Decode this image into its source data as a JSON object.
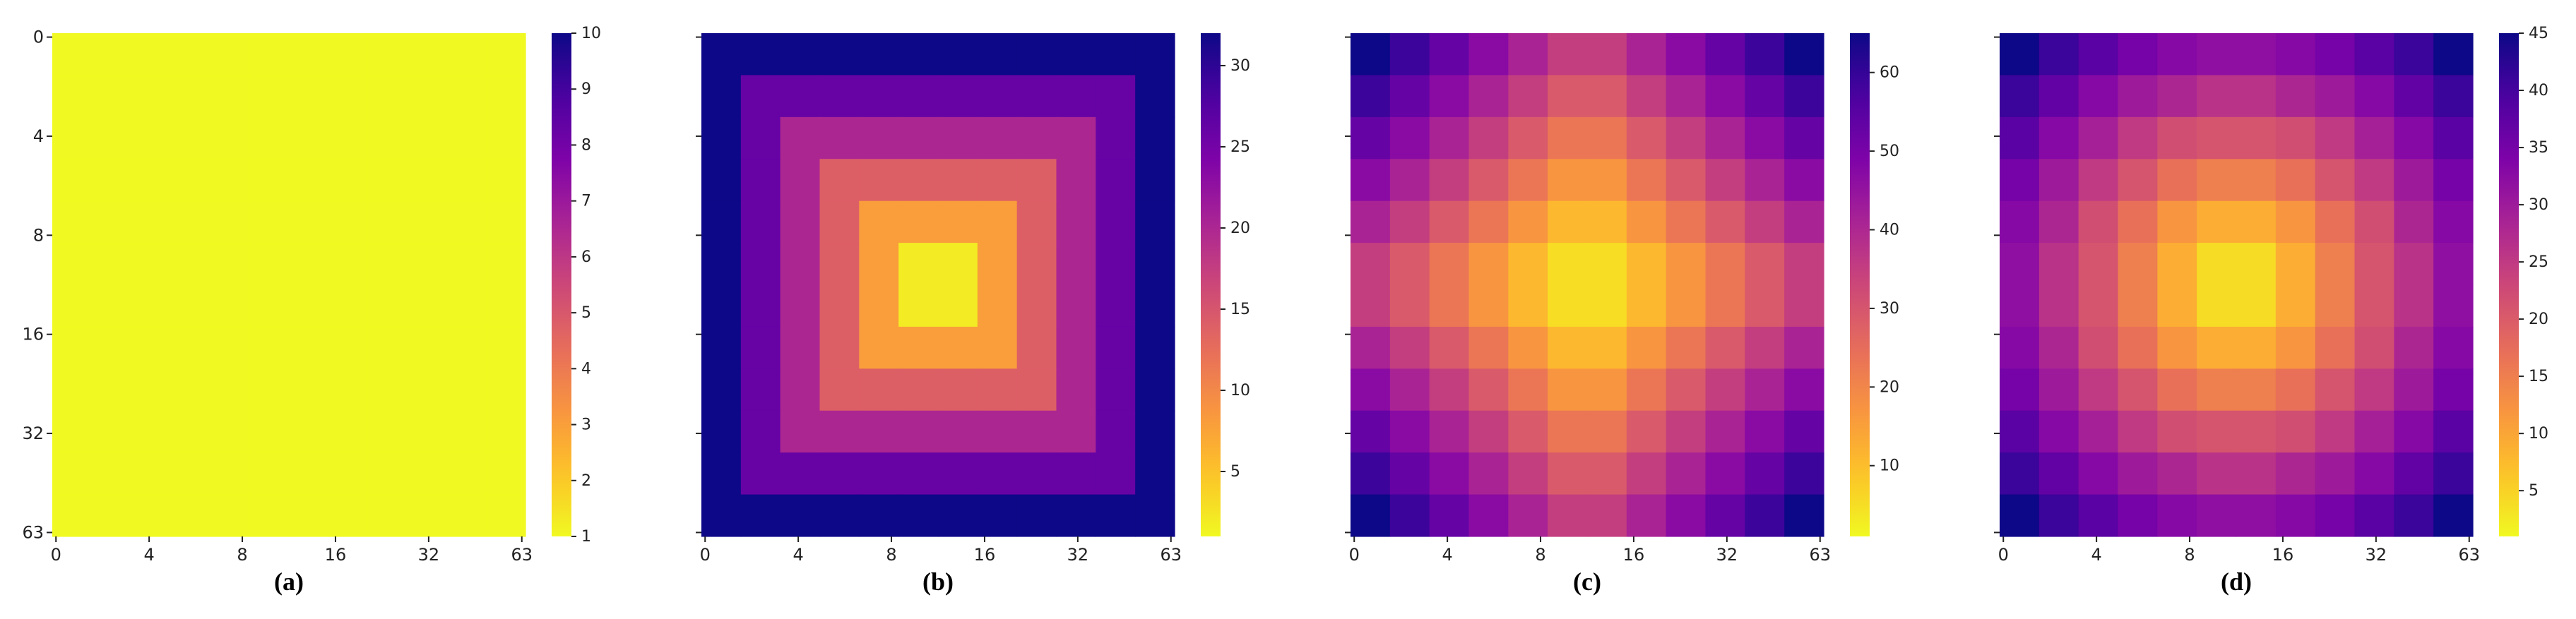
{
  "chart_data": [
    {
      "type": "heatmap",
      "caption": "(a)",
      "colormap": "plasma_r",
      "x_tick_labels": [
        "0",
        "4",
        "8",
        "16",
        "32",
        "63"
      ],
      "y_tick_labels": [
        "0",
        "4",
        "8",
        "16",
        "32",
        "63"
      ],
      "clim": [
        1,
        10
      ],
      "cticks": [
        1,
        2,
        3,
        4,
        5,
        6,
        7,
        8,
        9,
        10
      ],
      "values": [
        [
          1,
          1,
          1,
          1,
          1,
          1,
          1,
          1,
          1,
          1,
          1,
          1
        ],
        [
          1,
          1,
          1,
          1,
          1,
          1,
          1,
          1,
          1,
          1,
          1,
          1
        ],
        [
          1,
          1,
          1,
          1,
          1,
          1,
          1,
          1,
          1,
          1,
          1,
          1
        ],
        [
          1,
          1,
          1,
          1,
          1,
          1,
          1,
          1,
          1,
          1,
          1,
          1
        ],
        [
          1,
          1,
          1,
          1,
          1,
          1,
          1,
          1,
          1,
          1,
          1,
          1
        ],
        [
          1,
          1,
          1,
          1,
          1,
          1,
          1,
          1,
          1,
          1,
          1,
          1
        ],
        [
          1,
          1,
          1,
          1,
          1,
          1,
          1,
          1,
          1,
          1,
          1,
          1
        ],
        [
          1,
          1,
          1,
          1,
          1,
          1,
          1,
          1,
          1,
          1,
          1,
          1
        ],
        [
          1,
          1,
          1,
          1,
          1,
          1,
          1,
          1,
          1,
          1,
          1,
          1
        ],
        [
          1,
          1,
          1,
          1,
          1,
          1,
          1,
          1,
          1,
          1,
          1,
          1
        ],
        [
          1,
          1,
          1,
          1,
          1,
          1,
          1,
          1,
          1,
          1,
          1,
          1
        ],
        [
          1,
          1,
          1,
          1,
          1,
          1,
          1,
          1,
          1,
          1,
          1,
          1
        ]
      ]
    },
    {
      "type": "heatmap",
      "caption": "(b)",
      "colormap": "plasma_r",
      "x_tick_labels": [
        "0",
        "4",
        "8",
        "16",
        "32",
        "63"
      ],
      "clim": [
        1,
        32
      ],
      "cticks": [
        5,
        10,
        15,
        20,
        25,
        30
      ],
      "values": [
        [
          32,
          32,
          32,
          32,
          32,
          32,
          32,
          32,
          32,
          32,
          32,
          32
        ],
        [
          32,
          26,
          26,
          26,
          26,
          26,
          26,
          26,
          26,
          26,
          26,
          32
        ],
        [
          32,
          26,
          20,
          20,
          20,
          20,
          20,
          20,
          20,
          20,
          26,
          32
        ],
        [
          32,
          26,
          20,
          14,
          14,
          14,
          14,
          14,
          14,
          20,
          26,
          32
        ],
        [
          32,
          26,
          20,
          14,
          8,
          8,
          8,
          8,
          14,
          20,
          26,
          32
        ],
        [
          32,
          26,
          20,
          14,
          8,
          2,
          2,
          8,
          14,
          20,
          26,
          32
        ],
        [
          32,
          26,
          20,
          14,
          8,
          2,
          2,
          8,
          14,
          20,
          26,
          32
        ],
        [
          32,
          26,
          20,
          14,
          8,
          8,
          8,
          8,
          14,
          20,
          26,
          32
        ],
        [
          32,
          26,
          20,
          14,
          14,
          14,
          14,
          14,
          14,
          20,
          26,
          32
        ],
        [
          32,
          26,
          20,
          20,
          20,
          20,
          20,
          20,
          20,
          20,
          26,
          32
        ],
        [
          32,
          26,
          26,
          26,
          26,
          26,
          26,
          26,
          26,
          26,
          26,
          32
        ],
        [
          32,
          32,
          32,
          32,
          32,
          32,
          32,
          32,
          32,
          32,
          32,
          32
        ]
      ]
    },
    {
      "type": "heatmap",
      "caption": "(c)",
      "colormap": "plasma_r",
      "x_tick_labels": [
        "0",
        "4",
        "8",
        "16",
        "32",
        "63"
      ],
      "clim": [
        1,
        65
      ],
      "cticks": [
        10,
        20,
        30,
        40,
        50,
        60
      ],
      "values": [
        [
          65,
          59,
          53,
          47,
          41,
          35,
          35,
          41,
          47,
          53,
          59,
          65
        ],
        [
          59,
          53,
          47,
          41,
          35,
          29,
          29,
          35,
          41,
          47,
          53,
          59
        ],
        [
          53,
          47,
          41,
          35,
          29,
          23,
          23,
          29,
          35,
          41,
          47,
          53
        ],
        [
          47,
          41,
          35,
          29,
          23,
          17,
          17,
          23,
          29,
          35,
          41,
          47
        ],
        [
          41,
          35,
          29,
          23,
          17,
          11,
          11,
          17,
          23,
          29,
          35,
          41
        ],
        [
          35,
          29,
          23,
          17,
          11,
          5,
          5,
          11,
          17,
          23,
          29,
          35
        ],
        [
          35,
          29,
          23,
          17,
          11,
          5,
          5,
          11,
          17,
          23,
          29,
          35
        ],
        [
          41,
          35,
          29,
          23,
          17,
          11,
          11,
          17,
          23,
          29,
          35,
          41
        ],
        [
          47,
          41,
          35,
          29,
          23,
          17,
          17,
          23,
          29,
          35,
          41,
          47
        ],
        [
          53,
          47,
          41,
          35,
          29,
          23,
          23,
          29,
          35,
          41,
          47,
          53
        ],
        [
          59,
          53,
          47,
          41,
          35,
          29,
          29,
          35,
          41,
          47,
          53,
          59
        ],
        [
          65,
          59,
          53,
          47,
          41,
          35,
          35,
          41,
          47,
          53,
          59,
          65
        ]
      ]
    },
    {
      "type": "heatmap",
      "caption": "(d)",
      "colormap": "plasma_r",
      "x_tick_labels": [
        "0",
        "4",
        "8",
        "16",
        "32",
        "63"
      ],
      "clim": [
        1,
        45
      ],
      "cticks": [
        5,
        10,
        15,
        20,
        25,
        30,
        35,
        40,
        45
      ],
      "values": [
        [
          45,
          41,
          38,
          35,
          33,
          32,
          32,
          33,
          35,
          38,
          41,
          45
        ],
        [
          41,
          37,
          33,
          30,
          28,
          26,
          26,
          28,
          30,
          33,
          37,
          41
        ],
        [
          38,
          33,
          29,
          25,
          22,
          21,
          21,
          22,
          25,
          29,
          33,
          38
        ],
        [
          35,
          30,
          25,
          21,
          17,
          15,
          15,
          17,
          21,
          25,
          30,
          35
        ],
        [
          33,
          28,
          22,
          17,
          12,
          9,
          9,
          12,
          17,
          22,
          28,
          33
        ],
        [
          32,
          26,
          21,
          15,
          9,
          4,
          4,
          9,
          15,
          21,
          26,
          32
        ],
        [
          32,
          26,
          21,
          15,
          9,
          4,
          4,
          9,
          15,
          21,
          26,
          32
        ],
        [
          33,
          28,
          22,
          17,
          12,
          9,
          9,
          12,
          17,
          22,
          28,
          33
        ],
        [
          35,
          30,
          25,
          21,
          17,
          15,
          15,
          17,
          21,
          25,
          30,
          35
        ],
        [
          38,
          33,
          29,
          25,
          22,
          21,
          21,
          22,
          25,
          29,
          33,
          38
        ],
        [
          41,
          37,
          33,
          30,
          28,
          26,
          26,
          28,
          30,
          33,
          37,
          41
        ],
        [
          45,
          41,
          38,
          35,
          33,
          32,
          32,
          33,
          35,
          38,
          41,
          45
        ]
      ]
    }
  ]
}
